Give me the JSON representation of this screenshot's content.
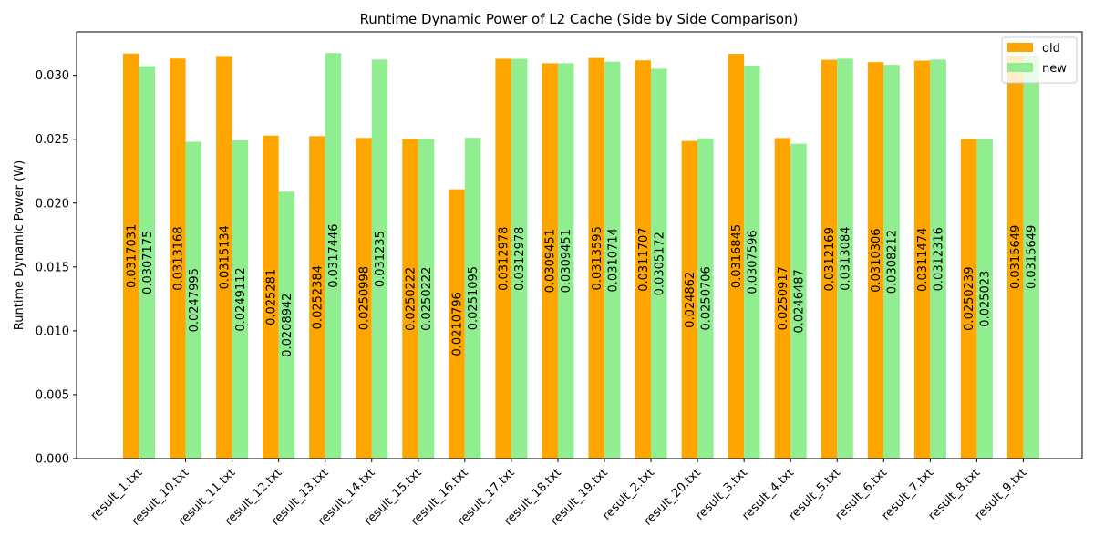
{
  "chart_data": {
    "type": "bar",
    "title": "Runtime Dynamic Power of L2 Cache (Side by Side Comparison)",
    "xlabel": "",
    "ylabel": "Runtime Dynamic Power (W)",
    "ylim": [
      0,
      0.0334
    ],
    "yticks": [
      "0.000",
      "0.005",
      "0.010",
      "0.015",
      "0.020",
      "0.025",
      "0.030"
    ],
    "ytick_values": [
      0,
      0.005,
      0.01,
      0.015,
      0.02,
      0.025,
      0.03
    ],
    "legend_position": "top-right",
    "grid": false,
    "categories": [
      "result_1.txt",
      "result_10.txt",
      "result_11.txt",
      "result_12.txt",
      "result_13.txt",
      "result_14.txt",
      "result_15.txt",
      "result_16.txt",
      "result_17.txt",
      "result_18.txt",
      "result_19.txt",
      "result_2.txt",
      "result_20.txt",
      "result_3.txt",
      "result_4.txt",
      "result_5.txt",
      "result_6.txt",
      "result_7.txt",
      "result_8.txt",
      "result_9.txt"
    ],
    "series": [
      {
        "name": "old",
        "color": "#ffa500",
        "values": [
          0.0317031,
          0.0313168,
          0.0315134,
          0.025281,
          0.0252384,
          0.0250998,
          0.0250222,
          0.0210796,
          0.0312978,
          0.0309451,
          0.0313595,
          0.0311707,
          0.024862,
          0.0316845,
          0.0250917,
          0.0312169,
          0.0310306,
          0.0311474,
          0.0250239,
          0.0315649
        ],
        "labels": [
          "0.0317031",
          "0.0313168",
          "0.0315134",
          "0.025281",
          "0.0252384",
          "0.0250998",
          "0.0250222",
          "0.0210796",
          "0.0312978",
          "0.0309451",
          "0.0313595",
          "0.0311707",
          "0.024862",
          "0.0316845",
          "0.0250917",
          "0.0312169",
          "0.0310306",
          "0.0311474",
          "0.0250239",
          "0.0315649"
        ]
      },
      {
        "name": "new",
        "color": "#90ee90",
        "values": [
          0.0307175,
          0.0247995,
          0.0249112,
          0.0208942,
          0.0317446,
          0.031235,
          0.0250222,
          0.0251095,
          0.0312978,
          0.0309451,
          0.0310714,
          0.0305172,
          0.0250706,
          0.0307596,
          0.0246487,
          0.0313084,
          0.0308212,
          0.0312316,
          0.025023,
          0.0315649
        ],
        "labels": [
          "0.0307175",
          "0.0247995",
          "0.0249112",
          "0.0208942",
          "0.0317446",
          "0.031235",
          "0.0250222",
          "0.0251095",
          "0.0312978",
          "0.0309451",
          "0.0310714",
          "0.0305172",
          "0.0250706",
          "0.0307596",
          "0.0246487",
          "0.0313084",
          "0.0308212",
          "0.0312316",
          "0.025023",
          "0.0315649"
        ]
      }
    ]
  }
}
